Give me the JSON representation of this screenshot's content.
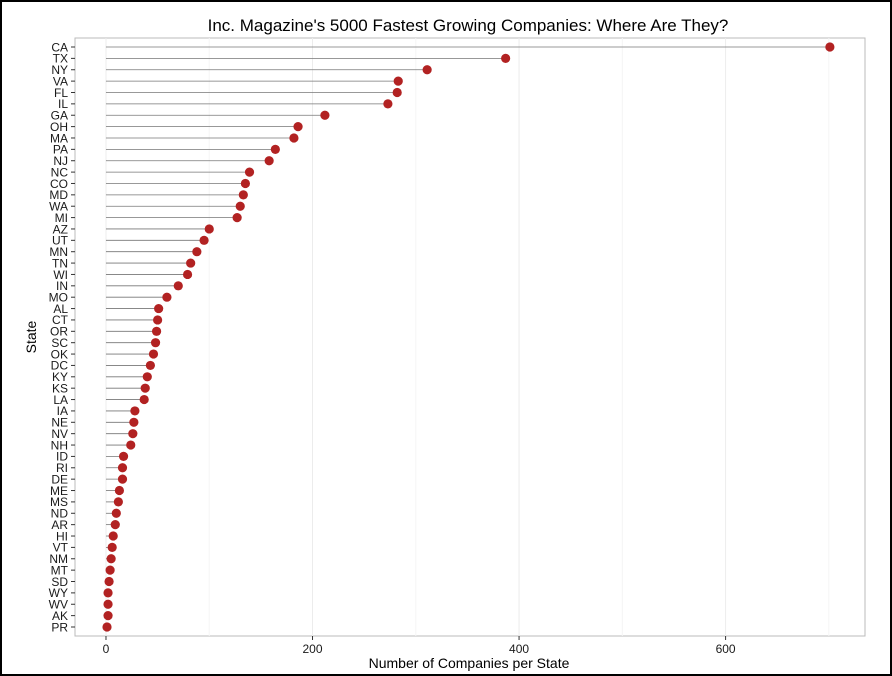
{
  "chart_data": {
    "type": "lollipop",
    "title": "Inc. Magazine's 5000 Fastest Growing Companies: Where Are They?",
    "xlabel": "Number of Companies per State",
    "ylabel": "State",
    "xlim": [
      -30,
      735
    ],
    "xticks": [
      0,
      200,
      400,
      600
    ],
    "grid": true,
    "point_color": "#b22222",
    "stem_color": "#777777",
    "categories": [
      "CA",
      "TX",
      "NY",
      "VA",
      "FL",
      "IL",
      "GA",
      "OH",
      "MA",
      "PA",
      "NJ",
      "NC",
      "CO",
      "MD",
      "WA",
      "MI",
      "AZ",
      "UT",
      "MN",
      "TN",
      "WI",
      "IN",
      "MO",
      "AL",
      "CT",
      "OR",
      "SC",
      "OK",
      "DC",
      "KY",
      "KS",
      "LA",
      "IA",
      "NE",
      "NV",
      "NH",
      "ID",
      "RI",
      "DE",
      "ME",
      "MS",
      "ND",
      "AR",
      "HI",
      "VT",
      "NM",
      "MT",
      "SD",
      "WY",
      "WV",
      "AK",
      "PR"
    ],
    "values": [
      701,
      387,
      311,
      283,
      282,
      273,
      212,
      186,
      182,
      164,
      158,
      139,
      135,
      133,
      130,
      127,
      100,
      95,
      88,
      82,
      79,
      70,
      59,
      51,
      50,
      49,
      48,
      46,
      43,
      40,
      38,
      37,
      28,
      27,
      26,
      24,
      17,
      16,
      16,
      13,
      12,
      10,
      9,
      7,
      6,
      5,
      4,
      3,
      2,
      2,
      2,
      1
    ]
  }
}
